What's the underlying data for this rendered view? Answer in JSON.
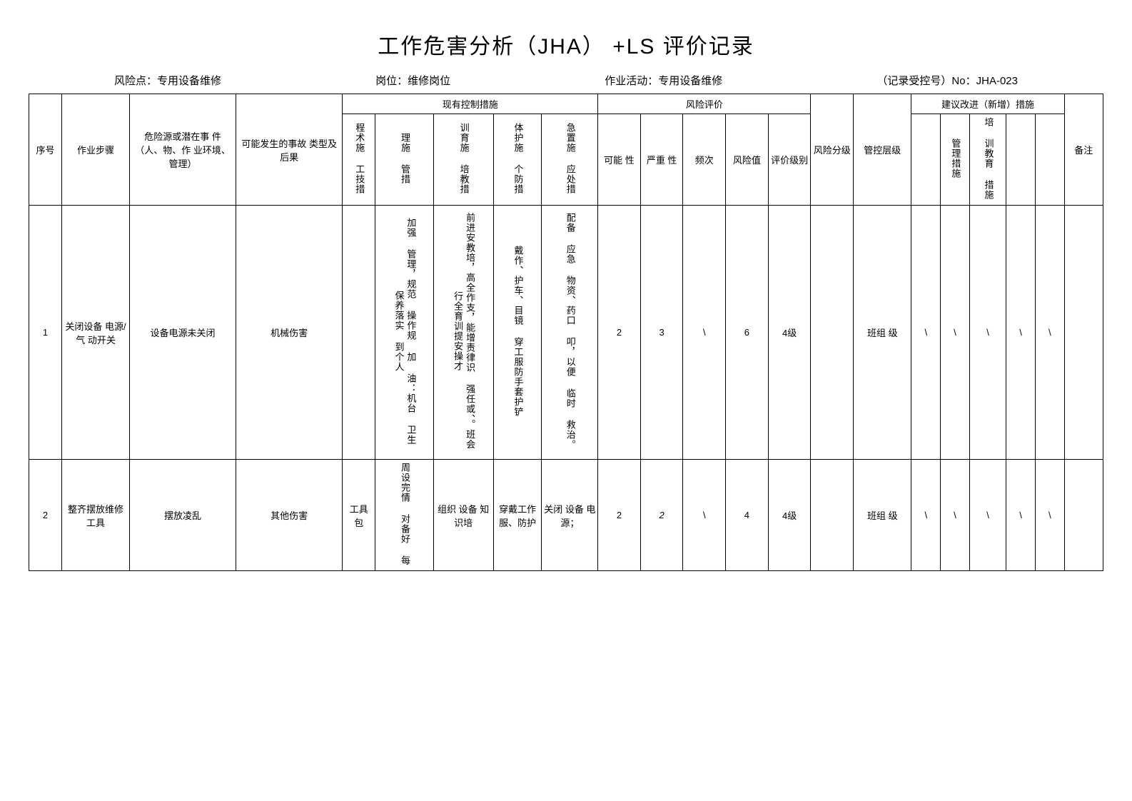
{
  "title": "工作危害分析（JHA）  +LS 评价记录",
  "meta": {
    "risk_point_label": "风险点：",
    "risk_point": "专用设备维修",
    "post_label": "岗位：",
    "post": "维修岗位",
    "activity_label": "作业活动：",
    "activity": "专用设备维修",
    "record_no_label": "（记录受控号）No：",
    "record_no": "JHA-023"
  },
  "headers": {
    "seq": "序号",
    "step": "作业步骤",
    "hazard": "危险源或潜在事 件（人、物、作 业环境、管理）",
    "accident": "可能发生的事故 类型及后果",
    "existing_group": "现有控制措施",
    "m1": "程术施 工技措",
    "m2": "理施 管措",
    "m3": "训育施 培教措",
    "m4": "体护施 个防措",
    "m5": "急置施 应处措",
    "eval_group": "风险评价",
    "e1": "可能 性",
    "e2": "严重 性",
    "e3": "频次",
    "e4": "风险值",
    "e5": "评价级别",
    "level": "风险分级",
    "control": "管控层级",
    "suggest_group": "建议改进（新增）措施",
    "s1": "",
    "s2": "管理措施",
    "s3": "培 训教育 措施",
    "s4": "",
    "s5": "",
    "note": "备注"
  },
  "rows": [
    {
      "seq": "1",
      "step": "关闭设备 电源/气 动开关",
      "hazard": "设备电源未关闭",
      "accident": "机械伤害",
      "m1": "",
      "m2": "加强 管理，规范 操作规  加 油：机台 卫生 保养落实 到个人",
      "m3": "前进安教培，高全作支，能增责律识  强任或、。班会行全育训提安操才",
      "m4": "戴作、护车、目镜 穿工服防手套护铲",
      "m5": "配备 应急 物资、药口 叩，以便 临时 救治。",
      "e1": "2",
      "e2": "3",
      "e3": "\\",
      "e4": "6",
      "e5": "4级",
      "level": "",
      "control": "班组 级",
      "s1": "\\",
      "s2": "\\",
      "s3": "\\",
      "s4": "\\",
      "s5": "\\",
      "note": ""
    },
    {
      "seq": "2",
      "step": "整齐摆放维修工具",
      "hazard": "摆放凌乱",
      "accident": "其他伤害",
      "m1": "工具 包",
      "m2": "周设完情  对备好 每",
      "m3": "组织 设备 知识培",
      "m4": "穿戴工作服、防护",
      "m5": "关闭 设备 电源；",
      "e1": "2",
      "e2": "2",
      "e3": "\\",
      "e4": "4",
      "e5": "4级",
      "level": "",
      "control": "班组 级",
      "s1": "\\",
      "s2": "\\",
      "s3": "\\",
      "s4": "\\",
      "s5": "\\",
      "note": ""
    }
  ]
}
